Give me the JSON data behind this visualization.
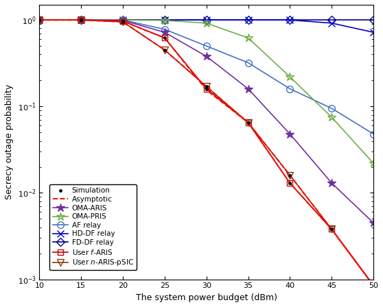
{
  "x": [
    10,
    15,
    20,
    25,
    30,
    35,
    40,
    45,
    50
  ],
  "OMA_ARIS": [
    1.0,
    1.0,
    0.99,
    0.72,
    0.38,
    0.16,
    0.048,
    0.013,
    0.0045
  ],
  "OMA_PRIS": [
    1.0,
    1.0,
    1.0,
    0.99,
    0.92,
    0.62,
    0.22,
    0.075,
    0.022
  ],
  "AF_relay": [
    1.0,
    1.0,
    1.0,
    0.78,
    0.5,
    0.32,
    0.16,
    0.095,
    0.048
  ],
  "HD_DF_relay": [
    1.0,
    1.0,
    1.0,
    1.0,
    1.0,
    1.0,
    1.0,
    0.92,
    0.72
  ],
  "FD_DF_relay": [
    1.0,
    1.0,
    1.0,
    1.0,
    1.0,
    1.0,
    1.0,
    1.0,
    1.0
  ],
  "User_f_ARIS": [
    1.0,
    1.0,
    0.97,
    0.62,
    0.16,
    0.065,
    0.013,
    0.0038,
    0.00085
  ],
  "User_n_ARIS_pSIC": [
    1.0,
    1.0,
    0.95,
    0.45,
    0.17,
    0.065,
    0.016,
    0.0038,
    0.00085
  ],
  "Asym_f_ARIS": [
    1.0,
    1.0,
    0.97,
    0.62,
    0.155,
    0.065,
    0.013,
    0.0038,
    0.00085
  ],
  "Asym_n_ARIS": [
    1.0,
    1.0,
    0.95,
    0.45,
    0.17,
    0.065,
    0.016,
    0.0038,
    0.00085
  ],
  "color_OMA_ARIS": "#7030a0",
  "color_OMA_PRIS": "#70ad47",
  "color_AF": "#00b0f0",
  "color_HD": "#0070c0",
  "color_FD": "#002060",
  "color_user_f": "#c00000",
  "color_user_n": "#843c0c",
  "color_asym": "#ff0000",
  "color_sim": "#000000",
  "xlim": [
    10,
    50
  ],
  "ylim_lo": 0.001,
  "ylim_hi": 1.5,
  "xlabel": "The system power budget (dBm)",
  "ylabel": "Secrecy outage probability",
  "fontsize": 9,
  "tick_fontsize": 8
}
